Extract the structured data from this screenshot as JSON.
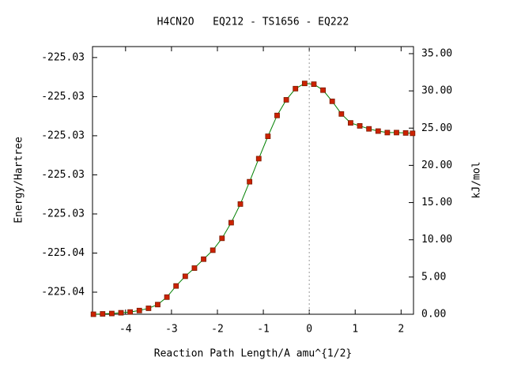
{
  "chart_data": {
    "type": "line",
    "title": "H4CN2O   EQ212 - TS1656 - EQ222",
    "x_label": "Reaction Path Length/A amu^{1/2}",
    "y_label": "Energy/Hartree",
    "y2_label": "kJ/mol",
    "xlim": [
      -4.72,
      2.27
    ],
    "xticks": [
      -4,
      -3,
      -2,
      -1,
      0,
      1,
      2
    ],
    "ylim": [
      -225.04163,
      -225.02794
    ],
    "yticks": [
      {
        "value": -225.0405,
        "label": "-225.04"
      },
      {
        "value": -225.0385,
        "label": "-225.04"
      },
      {
        "value": -225.0365,
        "label": "-225.03"
      },
      {
        "value": -225.0345,
        "label": "-225.03"
      },
      {
        "value": -225.0325,
        "label": "-225.03"
      },
      {
        "value": -225.0305,
        "label": "-225.03"
      },
      {
        "value": -225.0285,
        "label": "-225.03"
      }
    ],
    "y2lim": [
      0,
      35.95
    ],
    "y2ticks": [
      {
        "value": 0,
        "label": "0.00"
      },
      {
        "value": 5,
        "label": "5.00"
      },
      {
        "value": 10,
        "label": "10.00"
      },
      {
        "value": 15,
        "label": "15.00"
      },
      {
        "value": 20,
        "label": "20.00"
      },
      {
        "value": 25,
        "label": "25.00"
      },
      {
        "value": 30,
        "label": "30.00"
      },
      {
        "value": 35,
        "label": "35.00"
      }
    ],
    "ts_x": 0,
    "series": [
      {
        "color": "#008000",
        "marker_color": "#cc2200",
        "axis": "y2",
        "x": [
          -4.7,
          -4.5,
          -4.3,
          -4.1,
          -3.9,
          -3.7,
          -3.5,
          -3.3,
          -3.1,
          -2.9,
          -2.7,
          -2.5,
          -2.3,
          -2.1,
          -1.9,
          -1.7,
          -1.5,
          -1.3,
          -1.1,
          -0.9,
          -0.7,
          -0.5,
          -0.3,
          -0.1,
          0.1,
          0.3,
          0.5,
          0.7,
          0.9,
          1.1,
          1.3,
          1.5,
          1.7,
          1.9,
          2.1,
          2.25
        ],
        "values": [
          0,
          0.05,
          0.1,
          0.2,
          0.3,
          0.5,
          0.8,
          1.3,
          2.3,
          3.8,
          5.1,
          6.2,
          7.4,
          8.6,
          10.2,
          12.3,
          14.8,
          17.8,
          20.9,
          23.9,
          26.7,
          28.8,
          30.3,
          31.0,
          30.9,
          30.1,
          28.6,
          26.9,
          25.7,
          25.3,
          24.9,
          24.6,
          24.4,
          24.4,
          24.35,
          24.3
        ]
      }
    ]
  }
}
